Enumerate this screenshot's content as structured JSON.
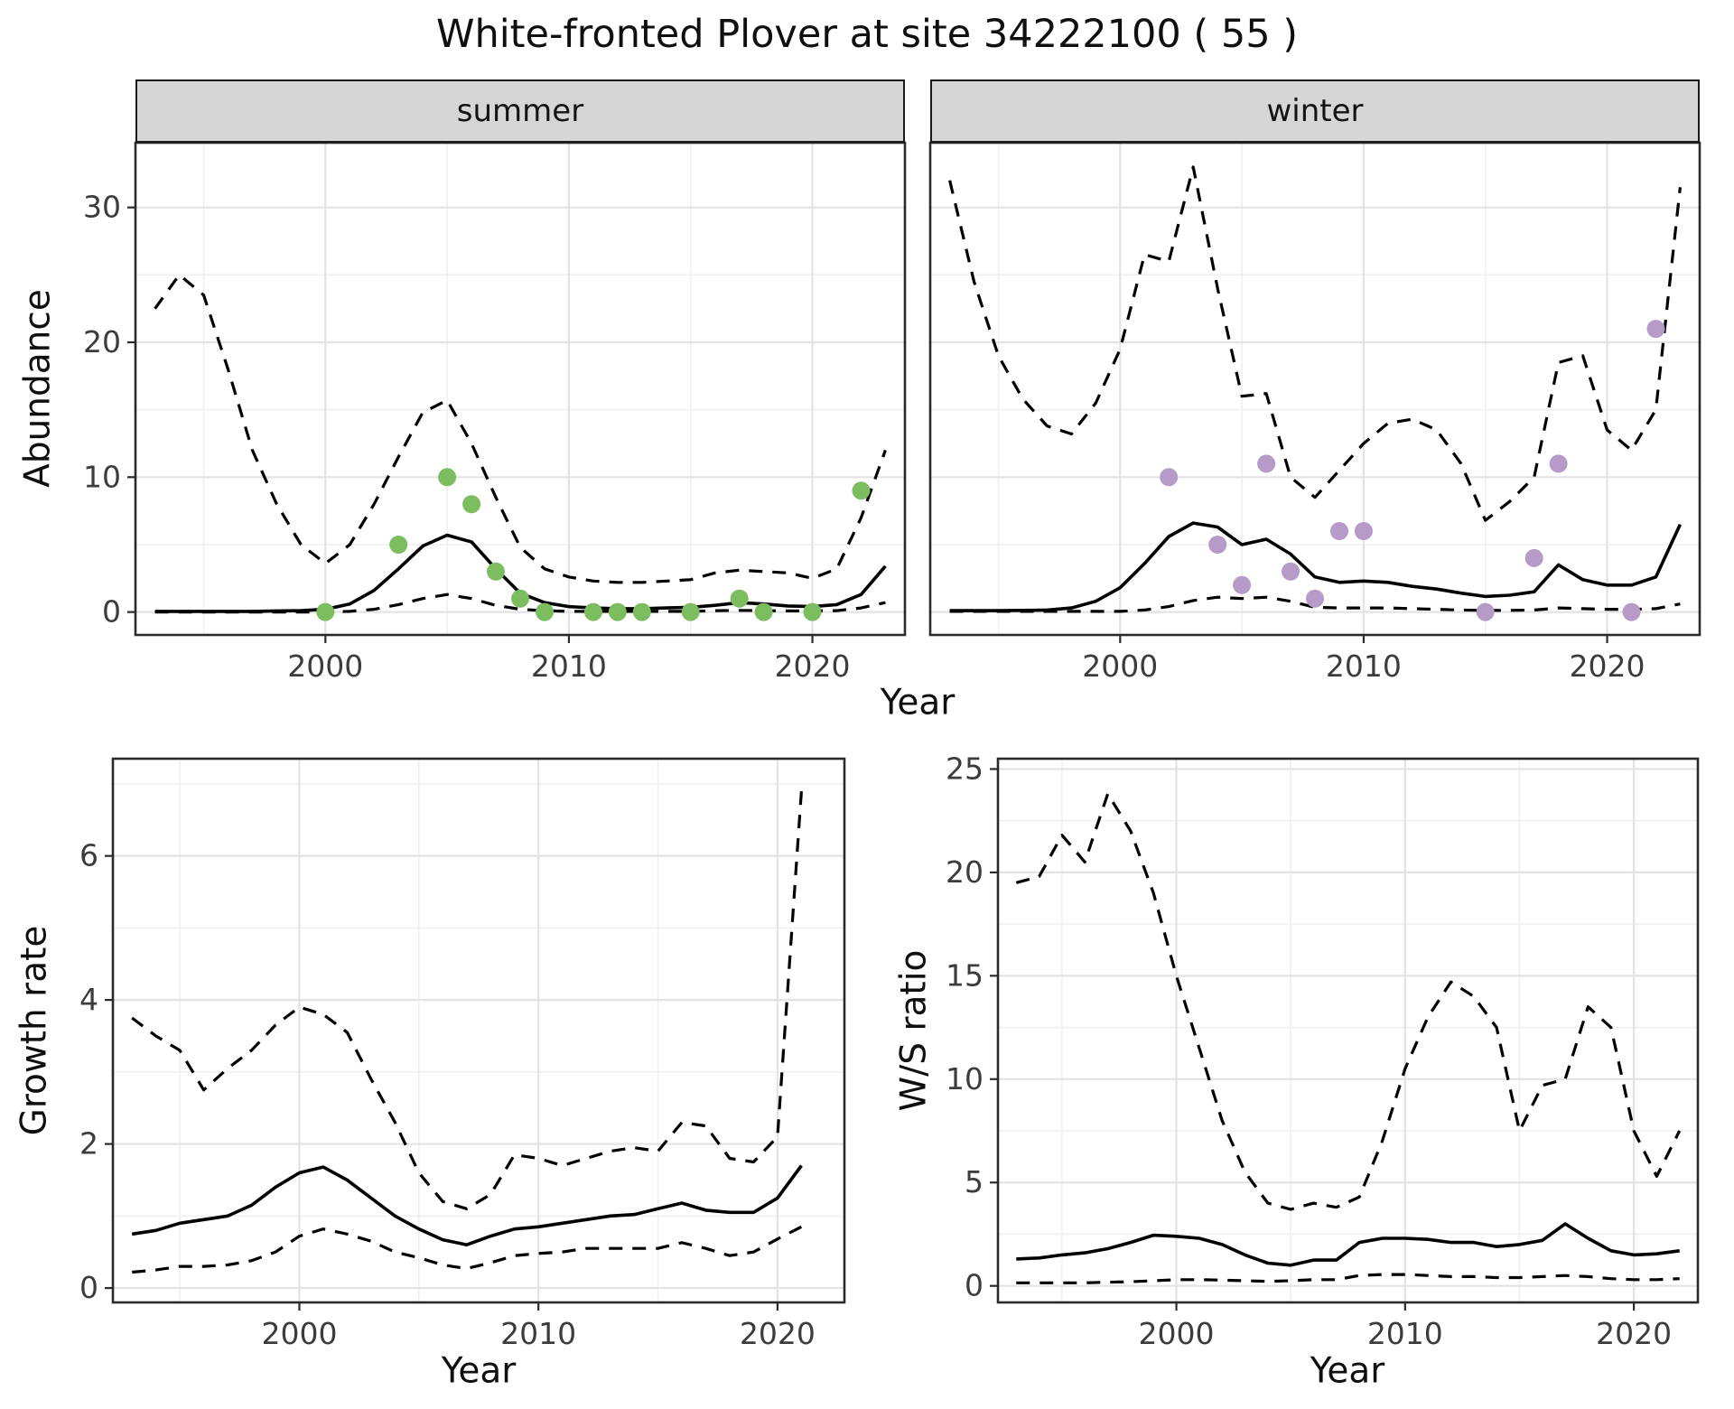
{
  "title": "White-fronted Plover at site 34222100 ( 55 )",
  "colors": {
    "summer_point": "#7cbd5f",
    "winter_point": "#b69bc9",
    "line": "#000000",
    "grid_major": "#e3e3e3",
    "grid_minor": "#f0f0f0",
    "panel_border": "#2b2b2b",
    "strip_bg": "#d6d6d6",
    "axis_text": "#3c3c3c"
  },
  "chart_data": [
    {
      "id": "abundance_summer",
      "type": "line",
      "facet": "summer",
      "xlabel": "Year",
      "ylabel": "Abundance",
      "xlim": [
        1992.2,
        2023.8
      ],
      "ylim": [
        -1.7,
        34.8
      ],
      "xticks": [
        2000,
        2010,
        2020
      ],
      "xminor": [
        1995,
        2005,
        2015
      ],
      "yticks": [
        0,
        10,
        20,
        30
      ],
      "yminor": [
        5,
        15,
        25
      ],
      "show_ytick_labels": true,
      "x": [
        1993,
        1994,
        1995,
        1996,
        1997,
        1998,
        1999,
        2000,
        2001,
        2002,
        2003,
        2004,
        2005,
        2006,
        2007,
        2008,
        2009,
        2010,
        2011,
        2012,
        2013,
        2014,
        2015,
        2016,
        2017,
        2018,
        2019,
        2020,
        2021,
        2022,
        2023
      ],
      "series": [
        {
          "name": "upper_ci",
          "style": "dashed",
          "y": [
            22.5,
            25.0,
            23.5,
            18.0,
            12.0,
            8.0,
            5.0,
            3.6,
            5.0,
            8.0,
            11.5,
            14.8,
            15.7,
            12.5,
            8.5,
            4.8,
            3.2,
            2.6,
            2.3,
            2.2,
            2.2,
            2.3,
            2.4,
            2.9,
            3.1,
            3.0,
            2.9,
            2.5,
            3.2,
            7.0,
            12.0
          ]
        },
        {
          "name": "median",
          "style": "solid",
          "y": [
            0.05,
            0.05,
            0.05,
            0.05,
            0.05,
            0.08,
            0.1,
            0.2,
            0.6,
            1.6,
            3.2,
            4.9,
            5.7,
            5.2,
            3.2,
            1.4,
            0.7,
            0.4,
            0.3,
            0.25,
            0.25,
            0.3,
            0.35,
            0.5,
            0.7,
            0.6,
            0.45,
            0.4,
            0.55,
            1.3,
            3.4
          ]
        },
        {
          "name": "lower_ci",
          "style": "dashed",
          "y": [
            0,
            0,
            0,
            0,
            0,
            0,
            0,
            0,
            0.05,
            0.2,
            0.55,
            1.0,
            1.3,
            1.0,
            0.5,
            0.2,
            0.1,
            0.05,
            0.05,
            0.05,
            0.05,
            0.05,
            0.05,
            0.1,
            0.12,
            0.1,
            0.08,
            0.08,
            0.1,
            0.3,
            0.7
          ]
        }
      ],
      "points": {
        "name": "observed_counts",
        "color": "#7cbd5f",
        "x": [
          2000,
          2003,
          2005,
          2006,
          2007,
          2008,
          2009,
          2011,
          2012,
          2013,
          2015,
          2017,
          2018,
          2020,
          2022
        ],
        "y": [
          0,
          5,
          10,
          8,
          3,
          1,
          0,
          0,
          0,
          0,
          0,
          1,
          0,
          0,
          9
        ]
      }
    },
    {
      "id": "abundance_winter",
      "type": "line",
      "facet": "winter",
      "xlabel": "Year",
      "ylabel": "",
      "xlim": [
        1992.2,
        2023.8
      ],
      "ylim": [
        -1.7,
        34.8
      ],
      "xticks": [
        2000,
        2010,
        2020
      ],
      "xminor": [
        1995,
        2005,
        2015
      ],
      "yticks": [
        0,
        10,
        20,
        30
      ],
      "yminor": [
        5,
        15,
        25
      ],
      "show_ytick_labels": false,
      "x": [
        1993,
        1994,
        1995,
        1996,
        1997,
        1998,
        1999,
        2000,
        2001,
        2002,
        2003,
        2004,
        2005,
        2006,
        2007,
        2008,
        2009,
        2010,
        2011,
        2012,
        2013,
        2014,
        2015,
        2016,
        2017,
        2018,
        2019,
        2020,
        2021,
        2022,
        2023
      ],
      "series": [
        {
          "name": "upper_ci",
          "style": "dashed",
          "y": [
            32.0,
            24.5,
            19.0,
            15.8,
            13.8,
            13.2,
            15.5,
            19.5,
            26.5,
            26.0,
            33.0,
            24.0,
            16.0,
            16.2,
            10.0,
            8.5,
            10.5,
            12.5,
            14.0,
            14.3,
            13.5,
            11.0,
            6.8,
            8.2,
            10.0,
            18.5,
            19.0,
            13.5,
            12.0,
            15.0,
            31.5
          ]
        },
        {
          "name": "median",
          "style": "solid",
          "y": [
            0.1,
            0.1,
            0.1,
            0.12,
            0.15,
            0.3,
            0.8,
            1.8,
            3.6,
            5.6,
            6.6,
            6.3,
            5.0,
            5.4,
            4.3,
            2.6,
            2.2,
            2.3,
            2.2,
            1.9,
            1.7,
            1.4,
            1.15,
            1.25,
            1.5,
            3.5,
            2.4,
            2.0,
            2.0,
            2.6,
            6.5
          ]
        },
        {
          "name": "lower_ci",
          "style": "dashed",
          "y": [
            0.05,
            0.05,
            0.05,
            0.05,
            0.05,
            0.05,
            0.05,
            0.05,
            0.15,
            0.4,
            0.85,
            1.1,
            1.0,
            1.1,
            0.8,
            0.35,
            0.3,
            0.3,
            0.3,
            0.25,
            0.2,
            0.15,
            0.12,
            0.12,
            0.15,
            0.3,
            0.25,
            0.2,
            0.2,
            0.25,
            0.6
          ]
        }
      ],
      "points": {
        "name": "observed_counts",
        "color": "#b69bc9",
        "x": [
          2002,
          2004,
          2005,
          2006,
          2007,
          2008,
          2009,
          2010,
          2015,
          2017,
          2018,
          2021,
          2022
        ],
        "y": [
          10,
          5,
          2,
          11,
          3,
          1,
          6,
          6,
          0,
          4,
          11,
          0,
          21
        ]
      }
    },
    {
      "id": "growth_rate",
      "type": "line",
      "facet": "",
      "xlabel": "Year",
      "ylabel": "Growth rate",
      "xlim": [
        1992.2,
        2022.8
      ],
      "ylim": [
        -0.2,
        7.35
      ],
      "xticks": [
        2000,
        2010,
        2020
      ],
      "xminor": [
        1995,
        2005,
        2015
      ],
      "yticks": [
        0,
        2,
        4,
        6
      ],
      "yminor": [
        1,
        3,
        5,
        7
      ],
      "show_ytick_labels": true,
      "x": [
        1993,
        1994,
        1995,
        1996,
        1997,
        1998,
        1999,
        2000,
        2001,
        2002,
        2003,
        2004,
        2005,
        2006,
        2007,
        2008,
        2009,
        2010,
        2011,
        2012,
        2013,
        2014,
        2015,
        2016,
        2017,
        2018,
        2019,
        2020,
        2021
      ],
      "series": [
        {
          "name": "upper_ci",
          "style": "dashed",
          "y": [
            3.75,
            3.5,
            3.3,
            2.75,
            3.05,
            3.3,
            3.65,
            3.9,
            3.8,
            3.55,
            2.9,
            2.3,
            1.6,
            1.2,
            1.1,
            1.3,
            1.85,
            1.8,
            1.7,
            1.8,
            1.9,
            1.95,
            1.9,
            2.3,
            2.25,
            1.8,
            1.75,
            2.1,
            6.9
          ]
        },
        {
          "name": "median",
          "style": "solid",
          "y": [
            0.75,
            0.8,
            0.9,
            0.95,
            1.0,
            1.15,
            1.4,
            1.6,
            1.68,
            1.5,
            1.25,
            1.0,
            0.82,
            0.67,
            0.6,
            0.72,
            0.82,
            0.85,
            0.9,
            0.95,
            1.0,
            1.02,
            1.1,
            1.18,
            1.08,
            1.05,
            1.05,
            1.25,
            1.7
          ]
        },
        {
          "name": "lower_ci",
          "style": "dashed",
          "y": [
            0.22,
            0.25,
            0.3,
            0.3,
            0.32,
            0.38,
            0.5,
            0.72,
            0.82,
            0.75,
            0.65,
            0.5,
            0.42,
            0.32,
            0.27,
            0.35,
            0.45,
            0.48,
            0.5,
            0.55,
            0.55,
            0.55,
            0.55,
            0.63,
            0.55,
            0.45,
            0.5,
            0.68,
            0.85
          ]
        }
      ]
    },
    {
      "id": "ws_ratio",
      "type": "line",
      "facet": "",
      "xlabel": "Year",
      "ylabel": "W/S ratio",
      "xlim": [
        1992.2,
        2022.8
      ],
      "ylim": [
        -0.8,
        25.5
      ],
      "xticks": [
        2000,
        2010,
        2020
      ],
      "xminor": [
        1995,
        2005,
        2015
      ],
      "yticks": [
        0,
        5,
        10,
        15,
        20,
        25
      ],
      "yminor": [
        2.5,
        7.5,
        12.5,
        17.5,
        22.5
      ],
      "show_ytick_labels": true,
      "x": [
        1993,
        1994,
        1995,
        1996,
        1997,
        1998,
        1999,
        2000,
        2001,
        2002,
        2003,
        2004,
        2005,
        2006,
        2007,
        2008,
        2009,
        2010,
        2011,
        2012,
        2013,
        2014,
        2015,
        2016,
        2017,
        2018,
        2019,
        2020,
        2021,
        2022
      ],
      "series": [
        {
          "name": "upper_ci",
          "style": "dashed",
          "y": [
            19.5,
            19.8,
            21.8,
            20.5,
            23.8,
            22.0,
            19.0,
            15.0,
            11.5,
            8.0,
            5.5,
            4.0,
            3.7,
            4.0,
            3.8,
            4.3,
            7.0,
            10.5,
            13.0,
            14.7,
            14.0,
            12.5,
            7.5,
            9.7,
            10.0,
            13.5,
            12.5,
            7.5,
            5.3,
            7.5
          ]
        },
        {
          "name": "median",
          "style": "solid",
          "y": [
            1.3,
            1.35,
            1.5,
            1.6,
            1.8,
            2.1,
            2.45,
            2.4,
            2.3,
            2.0,
            1.5,
            1.1,
            1.0,
            1.25,
            1.25,
            2.1,
            2.3,
            2.3,
            2.25,
            2.1,
            2.1,
            1.9,
            2.0,
            2.2,
            3.0,
            2.3,
            1.7,
            1.5,
            1.55,
            1.7
          ]
        },
        {
          "name": "lower_ci",
          "style": "dashed",
          "y": [
            0.15,
            0.15,
            0.15,
            0.15,
            0.18,
            0.2,
            0.25,
            0.3,
            0.3,
            0.28,
            0.25,
            0.22,
            0.25,
            0.3,
            0.3,
            0.5,
            0.55,
            0.55,
            0.5,
            0.45,
            0.45,
            0.4,
            0.4,
            0.45,
            0.5,
            0.45,
            0.35,
            0.3,
            0.3,
            0.35
          ]
        }
      ]
    }
  ]
}
